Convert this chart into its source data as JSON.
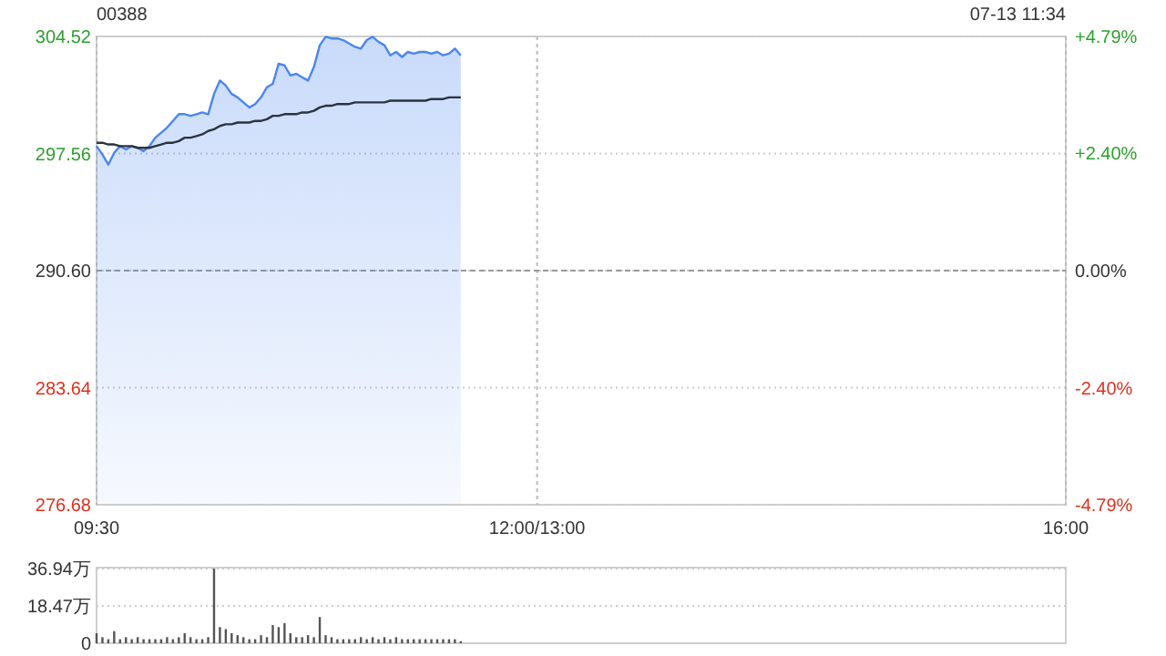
{
  "chart_data": [
    {
      "type": "area",
      "title": "00388",
      "annotations": [
        "07-13 11:34"
      ],
      "categories": [
        "09:30",
        null,
        null,
        null,
        null,
        null,
        null,
        null,
        null,
        null,
        null,
        null,
        null,
        null,
        null,
        null,
        null,
        null,
        null,
        null,
        null,
        null,
        null,
        null,
        null,
        null,
        null,
        null,
        null,
        null,
        null,
        null,
        null,
        null,
        null,
        null,
        null,
        null,
        null,
        null,
        null,
        null,
        null,
        null,
        null,
        null,
        null,
        null,
        null,
        null,
        null,
        null,
        null,
        null,
        null,
        null,
        null,
        null,
        null,
        null,
        null,
        null,
        null,
        null,
        null,
        null,
        null,
        null,
        null,
        null,
        null,
        null,
        null,
        null,
        null,
        "12:00/13:00",
        null,
        null,
        null,
        null,
        null,
        null,
        null,
        null,
        null,
        null,
        null,
        null,
        null,
        null,
        null,
        null,
        null,
        null,
        null,
        null,
        null,
        null,
        null,
        null,
        null,
        null,
        null,
        null,
        null,
        null,
        null,
        null,
        null,
        null,
        null,
        null,
        null,
        null,
        null,
        null,
        null,
        null,
        null,
        null,
        null,
        null,
        null,
        null,
        null,
        null,
        null,
        null,
        null,
        null,
        null,
        null,
        null,
        null,
        null,
        null,
        null,
        null,
        null,
        null,
        null,
        null,
        null,
        null,
        null,
        null,
        null,
        null,
        null,
        null,
        null,
        null,
        null,
        null,
        null,
        null,
        null,
        null,
        null,
        null,
        null,
        null,
        null,
        null,
        null,
        "16:00"
      ],
      "ylim": [
        276.68,
        304.52
      ],
      "yticks": [
        276.68,
        283.64,
        {
          "value": 290.6,
          "label": "290.60"
        },
        297.56,
        304.52
      ],
      "y2lim": [
        -4.79,
        4.79
      ],
      "y2ticks": [
        {
          "value": -4.79,
          "label": "-4.79%"
        },
        {
          "value": -2.4,
          "label": "-2.40%"
        },
        {
          "value": 0,
          "label": "0.00%"
        },
        {
          "value": 2.4,
          "label": "+2.40%"
        },
        {
          "value": 4.79,
          "label": "+4.79%"
        }
      ],
      "grid": true,
      "ref_lines": [
        {
          "axis": "y",
          "value": 290.6,
          "line_style": "dashed"
        }
      ],
      "series": [
        {
          "type": "area",
          "color": "#4a86f0",
          "values": [
            298.0,
            297.5,
            296.9,
            297.6,
            298.0,
            297.8,
            298.0,
            297.9,
            297.7,
            298.0,
            298.5,
            298.8,
            299.1,
            299.5,
            299.9,
            299.9,
            299.8,
            299.9,
            300.0,
            299.9,
            301.1,
            301.9,
            301.6,
            301.1,
            300.9,
            300.6,
            300.3,
            300.5,
            300.9,
            301.5,
            301.7,
            302.9,
            302.8,
            302.2,
            302.3,
            302.1,
            301.9,
            302.7,
            304.0,
            304.5,
            304.4,
            304.4,
            304.3,
            304.1,
            303.9,
            303.8,
            304.3,
            304.5,
            304.2,
            304.0,
            303.4,
            303.6,
            303.3,
            303.6,
            303.5,
            303.6,
            303.6,
            303.5,
            303.6,
            303.4,
            303.5,
            303.8,
            303.4,
            null,
            null,
            null,
            null,
            null,
            null,
            null,
            null,
            null,
            null,
            null,
            null,
            null,
            null,
            null,
            null,
            null,
            null,
            null,
            null,
            null,
            null,
            null,
            null,
            null,
            null,
            null,
            null,
            null,
            null,
            null,
            null,
            null,
            null,
            null,
            null,
            null,
            null,
            null,
            null,
            null,
            null,
            null,
            null,
            null,
            null,
            null,
            null,
            null,
            null,
            null,
            null,
            null,
            null,
            null,
            null,
            null,
            null,
            null,
            null,
            null,
            null,
            null,
            null,
            null,
            null,
            null,
            null,
            null,
            null,
            null,
            null,
            null,
            null,
            null,
            null,
            null,
            null,
            null,
            null,
            null,
            null,
            null,
            null,
            null,
            null,
            null,
            null,
            null,
            null,
            null,
            null,
            null,
            null,
            null,
            null,
            null,
            null,
            null,
            null,
            null,
            null,
            null
          ]
        },
        {
          "type": "line",
          "color": "#2b3340",
          "values": [
            298.2,
            298.2,
            298.1,
            298.1,
            298.0,
            298.0,
            298.0,
            297.9,
            297.9,
            297.9,
            298.0,
            298.1,
            298.2,
            298.2,
            298.3,
            298.5,
            298.5,
            298.6,
            298.7,
            298.9,
            299.0,
            299.2,
            299.3,
            299.3,
            299.4,
            299.4,
            299.4,
            299.5,
            299.5,
            299.6,
            299.8,
            299.8,
            299.9,
            299.9,
            299.9,
            300.0,
            300.0,
            300.1,
            300.3,
            300.4,
            300.4,
            300.5,
            300.5,
            300.5,
            300.6,
            300.6,
            300.6,
            300.6,
            300.6,
            300.6,
            300.7,
            300.7,
            300.7,
            300.7,
            300.7,
            300.7,
            300.7,
            300.8,
            300.8,
            300.8,
            300.9,
            300.9,
            300.9,
            null,
            null,
            null,
            null,
            null,
            null,
            null,
            null,
            null,
            null,
            null,
            null,
            null,
            null,
            null,
            null,
            null,
            null,
            null,
            null,
            null,
            null,
            null,
            null,
            null,
            null,
            null,
            null,
            null,
            null,
            null,
            null,
            null,
            null,
            null,
            null,
            null,
            null,
            null,
            null,
            null,
            null,
            null,
            null,
            null,
            null,
            null,
            null,
            null,
            null,
            null,
            null,
            null,
            null,
            null,
            null,
            null,
            null,
            null,
            null,
            null,
            null,
            null,
            null,
            null,
            null,
            null,
            null,
            null,
            null,
            null,
            null,
            null,
            null,
            null,
            null,
            null,
            null,
            null,
            null,
            null,
            null,
            null,
            null,
            null,
            null,
            null,
            null,
            null,
            null,
            null,
            null,
            null,
            null,
            null,
            null,
            null,
            null,
            null,
            null,
            null,
            null,
            null
          ]
        }
      ]
    },
    {
      "type": "bar",
      "color": "#555555",
      "tick_labels": "y",
      "grid": "y",
      "categories": [
        null,
        null,
        null,
        null,
        null,
        null,
        null,
        null,
        null,
        null,
        null,
        null,
        null,
        null,
        null,
        null,
        null,
        null,
        null,
        null,
        null,
        null,
        null,
        null,
        null,
        null,
        null,
        null,
        null,
        null,
        null,
        null,
        null,
        null,
        null,
        null,
        null,
        null,
        null,
        null,
        null,
        null,
        null,
        null,
        null,
        null,
        null,
        null,
        null,
        null,
        null,
        null,
        null,
        null,
        null,
        null,
        null,
        null,
        null,
        null,
        null,
        null,
        null,
        null,
        null,
        null,
        null,
        null,
        null,
        null,
        null,
        null,
        null,
        null,
        null,
        null,
        null,
        null,
        null,
        null,
        null,
        null,
        null,
        null,
        null,
        null,
        null,
        null,
        null,
        null,
        null,
        null,
        null,
        null,
        null,
        null,
        null,
        null,
        null,
        null,
        null,
        null,
        null,
        null,
        null,
        null,
        null,
        null,
        null,
        null,
        null,
        null,
        null,
        null,
        null,
        null,
        null,
        null,
        null,
        null,
        null,
        null,
        null,
        null,
        null,
        null,
        null,
        null,
        null,
        null,
        null,
        null,
        null,
        null,
        null,
        null,
        null,
        null,
        null,
        null,
        null,
        null,
        null,
        null,
        null,
        null,
        null,
        null,
        null,
        null,
        null,
        null,
        null,
        null,
        null,
        null,
        null,
        null,
        null,
        null,
        null,
        null,
        null,
        null,
        null,
        null
      ],
      "ylim": [
        0,
        37.5
      ],
      "yticks": [
        {
          "value": 0,
          "label": "0"
        },
        {
          "value": 18.47,
          "label": "18.47万"
        },
        {
          "value": 36.94,
          "label": "36.94万"
        }
      ],
      "values": [
        5,
        3,
        2,
        6,
        2,
        3,
        2,
        3,
        2,
        2,
        2,
        2,
        3,
        2,
        3,
        5,
        3,
        2,
        2,
        3,
        37.0,
        8,
        7,
        5,
        4,
        3,
        2,
        2,
        4,
        3,
        9,
        8,
        10,
        5,
        3,
        3,
        4,
        3,
        13,
        4,
        3,
        2,
        2,
        2,
        2,
        3,
        2,
        3,
        2,
        3,
        2,
        3,
        2,
        2,
        2,
        2,
        2,
        2,
        2,
        2,
        2,
        2,
        1,
        null,
        null,
        null,
        null,
        null,
        null,
        null,
        null,
        null,
        null,
        null,
        null,
        null,
        null,
        null,
        null,
        null,
        null,
        null,
        null,
        null,
        null,
        null,
        null,
        null,
        null,
        null,
        null,
        null,
        null,
        null,
        null,
        null,
        null,
        null,
        null,
        null,
        null,
        null,
        null,
        null,
        null,
        null,
        null,
        null,
        null,
        null,
        null,
        null,
        null,
        null,
        null,
        null,
        null,
        null,
        null,
        null,
        null,
        null,
        null,
        null,
        null,
        null,
        null,
        null,
        null,
        null,
        null,
        null,
        null,
        null,
        null,
        null,
        null,
        null,
        null,
        null,
        null,
        null,
        null,
        null,
        null,
        null,
        null,
        null,
        null,
        null,
        null,
        null,
        null,
        null,
        null,
        null,
        null,
        null,
        null,
        null,
        null,
        null,
        null,
        null,
        null,
        null
      ]
    }
  ]
}
